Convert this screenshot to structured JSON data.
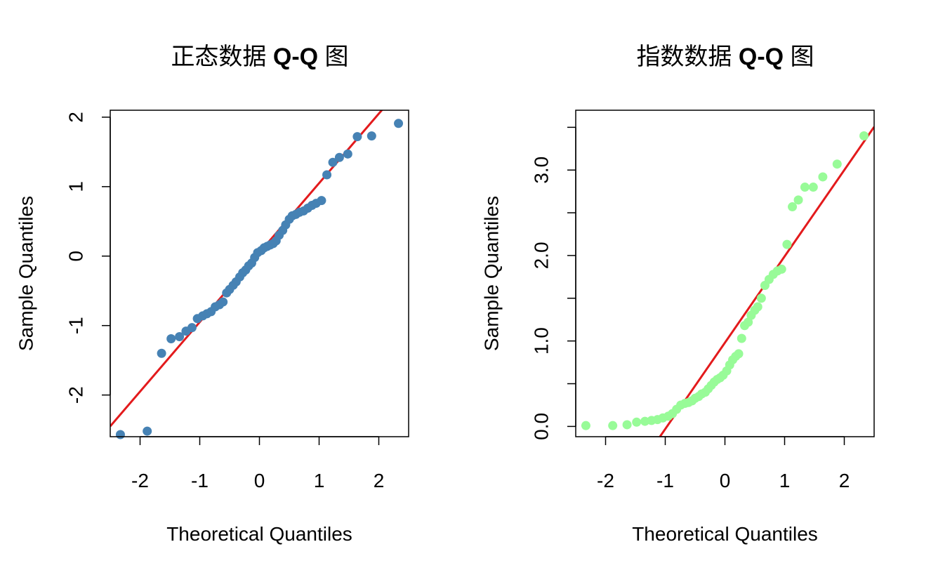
{
  "chart_data": [
    {
      "type": "scatter",
      "title": "正态数据 Q-Q 图",
      "title_parts": {
        "text": "正态数据 ",
        "bold": "Q-Q",
        "suffix": " 图"
      },
      "xlabel": "Theoretical Quantiles",
      "ylabel": "Sample Quantiles",
      "xlim": [
        -2.5,
        2.5
      ],
      "ylim": [
        -2.6,
        2.1
      ],
      "xticks": [
        -2,
        -1,
        0,
        1,
        2
      ],
      "xtick_labels": [
        "-2",
        "-1",
        "0",
        "1",
        "2"
      ],
      "yticks": [
        -2,
        -1,
        0,
        1,
        2
      ],
      "ytick_labels": [
        "-2",
        "-1",
        "0",
        "1",
        "2"
      ],
      "point_color": "#4682B4",
      "line_color": "#E31A1C",
      "reference_line": {
        "slope": 1.0,
        "intercept": 0.05
      },
      "series": [
        {
          "x": [
            -2.33,
            -1.88,
            -1.64,
            -1.48,
            -1.34,
            -1.23,
            -1.13,
            -1.04,
            -0.95,
            -0.88,
            -0.81,
            -0.74,
            -0.67,
            -0.61,
            -0.55,
            -0.5,
            -0.44,
            -0.39,
            -0.33,
            -0.28,
            -0.23,
            -0.18,
            -0.13,
            -0.08,
            -0.03,
            0.03,
            0.08,
            0.13,
            0.18,
            0.23,
            0.28,
            0.33,
            0.39,
            0.44,
            0.5,
            0.55,
            0.61,
            0.67,
            0.74,
            0.81,
            0.88,
            0.95,
            1.04,
            1.13,
            1.23,
            1.34,
            1.48,
            1.64,
            1.88,
            2.33
          ],
          "y": [
            -2.57,
            -2.52,
            -1.4,
            -1.19,
            -1.16,
            -1.08,
            -1.03,
            -0.9,
            -0.86,
            -0.83,
            -0.8,
            -0.73,
            -0.7,
            -0.66,
            -0.53,
            -0.48,
            -0.42,
            -0.37,
            -0.3,
            -0.24,
            -0.2,
            -0.14,
            -0.1,
            -0.02,
            0.05,
            0.08,
            0.12,
            0.14,
            0.16,
            0.18,
            0.22,
            0.3,
            0.37,
            0.45,
            0.53,
            0.58,
            0.6,
            0.63,
            0.65,
            0.69,
            0.73,
            0.76,
            0.8,
            1.17,
            1.35,
            1.42,
            1.47,
            1.72,
            1.73,
            1.91
          ]
        }
      ]
    },
    {
      "type": "scatter",
      "title": "指数数据 Q-Q 图",
      "title_parts": {
        "text": "指数数据 ",
        "bold": "Q-Q",
        "suffix": " 图"
      },
      "xlabel": "Theoretical Quantiles",
      "ylabel": "Sample Quantiles",
      "xlim": [
        -2.5,
        2.5
      ],
      "ylim": [
        -0.12,
        3.7
      ],
      "xticks": [
        -2,
        -1,
        0,
        1,
        2
      ],
      "xtick_labels": [
        "-2",
        "-1",
        "0",
        "1",
        "2"
      ],
      "yticks": [
        0,
        0.5,
        1,
        1.5,
        2,
        2.5,
        3,
        3.5
      ],
      "ytick_labels": [
        "0.0",
        "",
        "1.0",
        "",
        "2.0",
        "",
        "3.0",
        ""
      ],
      "point_color": "#98FB98",
      "line_color": "#E31A1C",
      "reference_line": {
        "slope": 1.01,
        "intercept": 0.98
      },
      "series": [
        {
          "x": [
            -2.33,
            -1.88,
            -1.64,
            -1.48,
            -1.34,
            -1.23,
            -1.13,
            -1.04,
            -0.95,
            -0.88,
            -0.81,
            -0.74,
            -0.67,
            -0.61,
            -0.55,
            -0.5,
            -0.44,
            -0.39,
            -0.33,
            -0.28,
            -0.23,
            -0.18,
            -0.13,
            -0.08,
            -0.03,
            0.03,
            0.08,
            0.13,
            0.18,
            0.23,
            0.28,
            0.33,
            0.39,
            0.44,
            0.5,
            0.55,
            0.61,
            0.67,
            0.74,
            0.81,
            0.88,
            0.95,
            1.04,
            1.13,
            1.23,
            1.34,
            1.48,
            1.64,
            1.88,
            2.33
          ],
          "y": [
            0.01,
            0.01,
            0.02,
            0.05,
            0.06,
            0.07,
            0.08,
            0.1,
            0.12,
            0.15,
            0.2,
            0.25,
            0.27,
            0.28,
            0.3,
            0.33,
            0.35,
            0.38,
            0.4,
            0.44,
            0.48,
            0.52,
            0.55,
            0.57,
            0.6,
            0.65,
            0.72,
            0.78,
            0.82,
            0.85,
            1.03,
            1.18,
            1.22,
            1.3,
            1.36,
            1.4,
            1.5,
            1.65,
            1.72,
            1.78,
            1.82,
            1.84,
            2.13,
            2.57,
            2.65,
            2.8,
            2.8,
            2.92,
            3.07,
            3.4
          ]
        }
      ]
    }
  ]
}
